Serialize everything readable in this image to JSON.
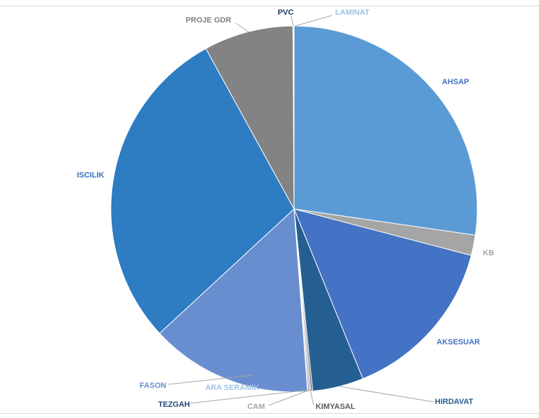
{
  "chart_data": {
    "type": "pie",
    "start_angle_deg": 0,
    "direction": "clockwise",
    "slices": [
      {
        "label": "AHSAP",
        "value": 27.3,
        "color": "#5b9bd5",
        "label_color": "#4472c4"
      },
      {
        "label": "KB",
        "value": 1.8,
        "color": "#a5a5a5",
        "label_color": "#a5a5a5"
      },
      {
        "label": "AKSESUAR",
        "value": 14.8,
        "color": "#4472c4",
        "label_color": "#4472c4"
      },
      {
        "label": "HIRDAVAT",
        "value": 4.5,
        "color": "#255e91",
        "label_color": "#255e91"
      },
      {
        "label": "KIMYASAL",
        "value": 0.15,
        "color": "#636363",
        "label_color": "#595959"
      },
      {
        "label": "CAM",
        "value": 0.15,
        "color": "#a5a5a5",
        "label_color": "#a5a5a5"
      },
      {
        "label": "TEZGAH",
        "value": 0.1,
        "color": "#264478",
        "label_color": "#264478"
      },
      {
        "label": "ARA SERAMIK",
        "value": 0.05,
        "color": "#9dc3e6",
        "label_color": "#9dc3e6"
      },
      {
        "label": "FASON",
        "value": 14.3,
        "color": "#698ed0",
        "label_color": "#698ed0"
      },
      {
        "label": "ISCILIK",
        "value": 28.9,
        "color": "#2e7cc2",
        "label_color": "#2e75b6"
      },
      {
        "label": "PROJE GDR",
        "value": 7.9,
        "color": "#838383",
        "label_color": "#7f7f7f"
      },
      {
        "label": "PVC",
        "value": 0.05,
        "color": "#1f3864",
        "label_color": "#1f3864"
      },
      {
        "label": "LAMINAT",
        "value": 0.05,
        "color": "#9dc3e6",
        "label_color": "#9dc3e6"
      }
    ]
  }
}
